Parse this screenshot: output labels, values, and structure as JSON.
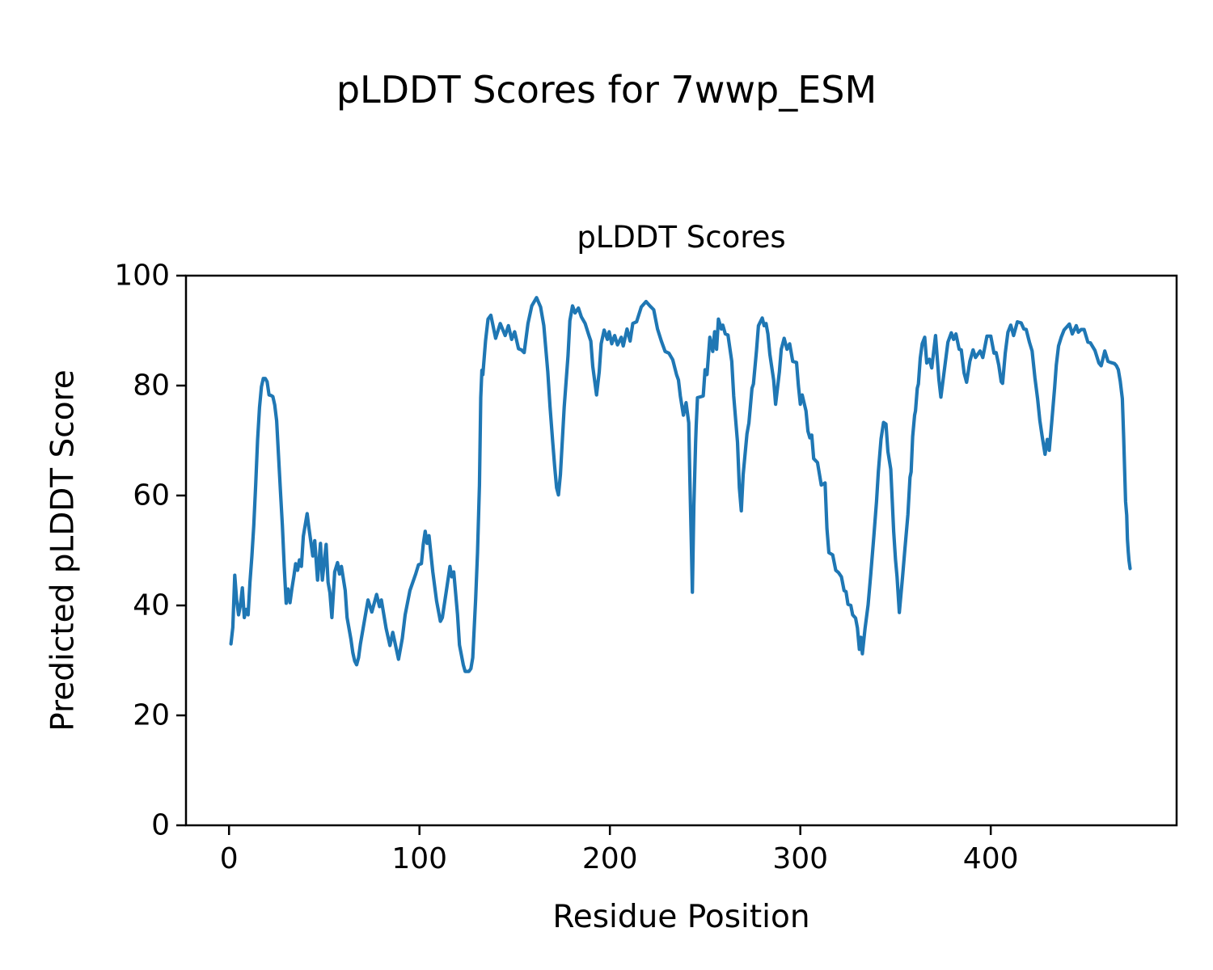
{
  "figure": {
    "background": "#ffffff",
    "suptitle": "pLDDT Scores for 7wwp_ESM"
  },
  "chart_data": {
    "type": "line",
    "title": "pLDDT Scores",
    "suptitle": "pLDDT Scores for 7wwp_ESM",
    "xlabel": "Residue Position",
    "ylabel": "Predicted pLDDT Score",
    "series_name": "pLDDT",
    "line_color": "#1f77b4",
    "axis_color": "#000000",
    "x_ticks": [
      0,
      100,
      200,
      300,
      400
    ],
    "y_ticks": [
      0,
      20,
      40,
      60,
      80,
      100
    ],
    "xlim": [
      -22.6,
      497.6
    ],
    "ylim": [
      0,
      100
    ],
    "grid": false,
    "legend": "none",
    "points": [
      [
        1,
        33
      ],
      [
        2,
        36
      ],
      [
        3,
        45.5
      ],
      [
        4,
        41
      ],
      [
        5,
        38.3
      ],
      [
        6,
        40
      ],
      [
        7,
        43.2
      ],
      [
        8,
        37.8
      ],
      [
        9,
        39.3
      ],
      [
        10,
        38.3
      ],
      [
        11,
        44.2
      ],
      [
        12,
        49
      ],
      [
        13,
        54.5
      ],
      [
        14,
        62
      ],
      [
        15,
        70
      ],
      [
        16,
        76
      ],
      [
        17,
        79.8
      ],
      [
        18,
        81.3
      ],
      [
        19,
        81.3
      ],
      [
        20,
        80.7
      ],
      [
        21,
        78.3
      ],
      [
        22,
        78.2
      ],
      [
        23,
        78
      ],
      [
        24,
        76.5
      ],
      [
        25,
        73.6
      ],
      [
        26,
        67.3
      ],
      [
        27,
        60.8
      ],
      [
        28,
        54.5
      ],
      [
        29,
        47
      ],
      [
        30,
        40.4
      ],
      [
        31,
        43
      ],
      [
        32,
        40.5
      ],
      [
        33,
        43
      ],
      [
        34,
        45.2
      ],
      [
        35,
        47.6
      ],
      [
        36,
        46.4
      ],
      [
        37,
        48.3
      ],
      [
        38,
        47.1
      ],
      [
        39,
        52.6
      ],
      [
        41,
        56.7
      ],
      [
        42,
        54
      ],
      [
        43,
        51.5
      ],
      [
        44,
        49
      ],
      [
        45,
        51.8
      ],
      [
        46.5,
        44.6
      ],
      [
        48,
        51.3
      ],
      [
        49,
        44.6
      ],
      [
        51,
        51.1
      ],
      [
        52,
        44.2
      ],
      [
        53,
        42.3
      ],
      [
        54,
        37.8
      ],
      [
        55.5,
        46.1
      ],
      [
        57,
        47.8
      ],
      [
        58,
        45.7
      ],
      [
        59,
        47.1
      ],
      [
        61,
        42.7
      ],
      [
        62,
        37.8
      ],
      [
        64,
        33.9
      ],
      [
        65,
        31.4
      ],
      [
        66,
        29.9
      ],
      [
        67,
        29.2
      ],
      [
        68,
        30.5
      ],
      [
        69,
        33
      ],
      [
        71,
        37
      ],
      [
        73,
        41
      ],
      [
        75,
        38.8
      ],
      [
        77.5,
        42
      ],
      [
        79,
        39.8
      ],
      [
        80,
        41
      ],
      [
        82.5,
        35.8
      ],
      [
        84.5,
        32.7
      ],
      [
        86,
        35.1
      ],
      [
        89,
        30.2
      ],
      [
        91,
        34
      ],
      [
        92.5,
        38.3
      ],
      [
        95,
        42.7
      ],
      [
        98,
        45.7
      ],
      [
        99.5,
        47.4
      ],
      [
        101,
        47.6
      ],
      [
        102,
        51.1
      ],
      [
        103,
        53.5
      ],
      [
        104,
        51.3
      ],
      [
        105,
        52.7
      ],
      [
        107,
        46.1
      ],
      [
        109,
        40.8
      ],
      [
        111,
        37.1
      ],
      [
        112,
        37.8
      ],
      [
        114,
        42.4
      ],
      [
        116,
        47.1
      ],
      [
        117,
        45.2
      ],
      [
        118,
        46.1
      ],
      [
        120,
        38.3
      ],
      [
        121,
        32.8
      ],
      [
        123,
        29.2
      ],
      [
        124,
        28
      ],
      [
        126,
        28
      ],
      [
        127,
        28.5
      ],
      [
        128,
        30.5
      ],
      [
        129.5,
        41.2
      ],
      [
        130.5,
        49.6
      ],
      [
        131.5,
        61.9
      ],
      [
        132.2,
        77.8
      ],
      [
        132.8,
        82.8
      ],
      [
        133.3,
        82
      ],
      [
        134.7,
        88.1
      ],
      [
        136,
        92.1
      ],
      [
        137.5,
        92.8
      ],
      [
        140,
        88.6
      ],
      [
        142.4,
        91.3
      ],
      [
        145,
        89.1
      ],
      [
        146.7,
        90.9
      ],
      [
        148.4,
        88.4
      ],
      [
        150,
        89.8
      ],
      [
        152,
        86.7
      ],
      [
        153.5,
        86.5
      ],
      [
        155,
        86
      ],
      [
        157,
        91.3
      ],
      [
        159,
        94.5
      ],
      [
        161.5,
        96
      ],
      [
        163.6,
        94.3
      ],
      [
        165.3,
        90.9
      ],
      [
        167.4,
        82.5
      ],
      [
        168.6,
        76.1
      ],
      [
        170,
        69.7
      ],
      [
        171,
        65.3
      ],
      [
        172,
        61.4
      ],
      [
        173,
        60.1
      ],
      [
        174,
        63.8
      ],
      [
        176,
        76.1
      ],
      [
        178,
        85.4
      ],
      [
        179,
        91.8
      ],
      [
        180.4,
        94.5
      ],
      [
        181.7,
        93.2
      ],
      [
        183.5,
        94.1
      ],
      [
        185,
        92.5
      ],
      [
        187,
        91.3
      ],
      [
        189,
        89.1
      ],
      [
        190,
        88.1
      ],
      [
        191,
        83.5
      ],
      [
        193,
        78.3
      ],
      [
        194.4,
        82.5
      ],
      [
        195.4,
        87.6
      ],
      [
        197,
        90.1
      ],
      [
        198.7,
        88.4
      ],
      [
        199.6,
        89.8
      ],
      [
        201,
        87.6
      ],
      [
        202.5,
        89.1
      ],
      [
        204,
        87.4
      ],
      [
        206,
        88.8
      ],
      [
        207,
        87.2
      ],
      [
        209,
        90.3
      ],
      [
        210.6,
        88.1
      ],
      [
        212,
        91.3
      ],
      [
        214,
        91.6
      ],
      [
        216.5,
        94.3
      ],
      [
        219,
        95.3
      ],
      [
        221,
        94.5
      ],
      [
        223,
        93.8
      ],
      [
        225,
        90.3
      ],
      [
        227,
        88.1
      ],
      [
        229,
        86.2
      ],
      [
        231,
        85.9
      ],
      [
        233,
        84.7
      ],
      [
        235,
        82
      ],
      [
        236,
        81
      ],
      [
        237,
        78.1
      ],
      [
        238.6,
        74.6
      ],
      [
        240,
        76.9
      ],
      [
        241.4,
        73.2
      ],
      [
        242,
        62.9
      ],
      [
        242.8,
        50.6
      ],
      [
        243.3,
        42.4
      ],
      [
        244.1,
        57.9
      ],
      [
        245,
        69.7
      ],
      [
        245.3,
        72.6
      ],
      [
        246,
        77.8
      ],
      [
        248,
        78
      ],
      [
        249,
        78.1
      ],
      [
        250,
        82.9
      ],
      [
        251,
        82
      ],
      [
        252.5,
        88.8
      ],
      [
        254,
        86.2
      ],
      [
        255,
        89.8
      ],
      [
        256,
        86.6
      ],
      [
        257,
        92.1
      ],
      [
        258.5,
        90.3
      ],
      [
        259.3,
        91
      ],
      [
        260.6,
        89.4
      ],
      [
        262,
        89.2
      ],
      [
        264,
        84.4
      ],
      [
        265,
        78.1
      ],
      [
        267,
        69.7
      ],
      [
        268,
        61.4
      ],
      [
        269,
        57.2
      ],
      [
        270,
        63.8
      ],
      [
        272,
        71.2
      ],
      [
        273,
        73.2
      ],
      [
        274.6,
        79.5
      ],
      [
        275.4,
        80.3
      ],
      [
        277,
        86.4
      ],
      [
        278,
        90.9
      ],
      [
        280,
        92.3
      ],
      [
        281,
        90.9
      ],
      [
        282,
        91.3
      ],
      [
        283,
        89.4
      ],
      [
        284,
        85.7
      ],
      [
        286,
        81
      ],
      [
        287,
        76.6
      ],
      [
        289,
        82.5
      ],
      [
        290,
        86.6
      ],
      [
        291.5,
        88.6
      ],
      [
        293,
        86.6
      ],
      [
        294.4,
        87.6
      ],
      [
        296,
        84.4
      ],
      [
        298,
        84.2
      ],
      [
        299,
        80
      ],
      [
        300,
        76.6
      ],
      [
        301,
        78.3
      ],
      [
        303,
        75.4
      ],
      [
        304,
        71.7
      ],
      [
        305,
        70.5
      ],
      [
        306,
        71
      ],
      [
        307,
        66.7
      ],
      [
        309,
        66
      ],
      [
        311,
        61.9
      ],
      [
        313,
        62.3
      ],
      [
        314,
        54
      ],
      [
        315,
        49.6
      ],
      [
        317,
        49.2
      ],
      [
        318.6,
        46.4
      ],
      [
        320,
        46
      ],
      [
        321.6,
        45.2
      ],
      [
        323,
        42.7
      ],
      [
        324,
        42.5
      ],
      [
        325,
        40.2
      ],
      [
        326.5,
        40
      ],
      [
        327.5,
        38.3
      ],
      [
        329,
        37.7
      ],
      [
        330,
        35.9
      ],
      [
        331,
        32
      ],
      [
        331.8,
        34.2
      ],
      [
        332.6,
        31.2
      ],
      [
        334,
        35.8
      ],
      [
        335.6,
        40.1
      ],
      [
        337,
        45.7
      ],
      [
        338.6,
        52.6
      ],
      [
        340,
        58.9
      ],
      [
        341,
        64.4
      ],
      [
        342.4,
        70.3
      ],
      [
        343.7,
        73.3
      ],
      [
        345,
        73
      ],
      [
        346,
        68
      ],
      [
        347.5,
        64.8
      ],
      [
        348.3,
        58.9
      ],
      [
        349,
        53.5
      ],
      [
        350,
        48.3
      ],
      [
        350.8,
        45.2
      ],
      [
        352,
        38.7
      ],
      [
        353.7,
        45.2
      ],
      [
        355,
        50.6
      ],
      [
        356.5,
        56.5
      ],
      [
        357.6,
        63.3
      ],
      [
        358.2,
        64.3
      ],
      [
        359,
        70.7
      ],
      [
        360,
        74.6
      ],
      [
        360.5,
        75.4
      ],
      [
        361.4,
        79.5
      ],
      [
        362,
        80.3
      ],
      [
        363,
        85
      ],
      [
        364,
        87.6
      ],
      [
        365.3,
        88.8
      ],
      [
        366.4,
        84.1
      ],
      [
        367.8,
        84.8
      ],
      [
        369,
        83.2
      ],
      [
        371,
        89.1
      ],
      [
        372.8,
        81
      ],
      [
        373.8,
        77.9
      ],
      [
        375.5,
        82.5
      ],
      [
        377.5,
        87.9
      ],
      [
        379.3,
        89.6
      ],
      [
        380.5,
        88.4
      ],
      [
        381.7,
        89.4
      ],
      [
        383.4,
        86.6
      ],
      [
        384.5,
        86.5
      ],
      [
        386,
        82.3
      ],
      [
        387.3,
        80.6
      ],
      [
        389,
        84.4
      ],
      [
        390.7,
        86.5
      ],
      [
        392,
        85.1
      ],
      [
        394.4,
        86.3
      ],
      [
        395.8,
        85.1
      ],
      [
        398,
        89
      ],
      [
        400,
        89
      ],
      [
        401.7,
        85.9
      ],
      [
        402.8,
        86
      ],
      [
        404.2,
        83.7
      ],
      [
        405.5,
        80.7
      ],
      [
        406.2,
        80.4
      ],
      [
        407.6,
        85.9
      ],
      [
        409,
        89.7
      ],
      [
        410.5,
        91
      ],
      [
        412,
        89.1
      ],
      [
        414,
        91.6
      ],
      [
        416,
        91.4
      ],
      [
        417.4,
        90.3
      ],
      [
        418.6,
        90.2
      ],
      [
        420.3,
        87.9
      ],
      [
        421.7,
        86.3
      ],
      [
        423.2,
        81.4
      ],
      [
        424.6,
        77.6
      ],
      [
        425.8,
        73.6
      ],
      [
        427,
        70.8
      ],
      [
        428.5,
        67.5
      ],
      [
        429.7,
        70.2
      ],
      [
        430.7,
        68.2
      ],
      [
        432,
        73.2
      ],
      [
        433.5,
        79.5
      ],
      [
        434.4,
        83.7
      ],
      [
        435.6,
        87.2
      ],
      [
        437,
        88.8
      ],
      [
        438.5,
        90.1
      ],
      [
        440,
        90.7
      ],
      [
        441.3,
        91.2
      ],
      [
        442.8,
        89.4
      ],
      [
        444.9,
        90.9
      ],
      [
        446,
        89.7
      ],
      [
        447.5,
        90.2
      ],
      [
        449,
        90.2
      ],
      [
        451,
        87.9
      ],
      [
        452.3,
        87.8
      ],
      [
        454.7,
        86.4
      ],
      [
        456.8,
        84.1
      ],
      [
        458,
        83.6
      ],
      [
        459.9,
        86.3
      ],
      [
        461.6,
        84.4
      ],
      [
        463,
        84.2
      ],
      [
        465,
        84
      ],
      [
        466,
        83.6
      ],
      [
        467,
        82.9
      ],
      [
        468,
        80.8
      ],
      [
        469.1,
        77.6
      ],
      [
        469.8,
        70.7
      ],
      [
        470.3,
        64.8
      ],
      [
        470.8,
        58.9
      ],
      [
        471.4,
        56.4
      ],
      [
        471.8,
        52
      ],
      [
        472.2,
        49.8
      ],
      [
        472.6,
        48.2
      ],
      [
        473.2,
        46.7
      ]
    ]
  }
}
